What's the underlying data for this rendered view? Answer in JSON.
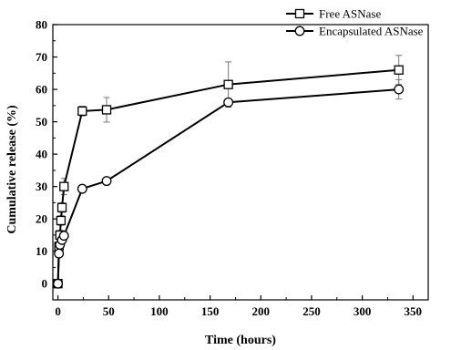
{
  "chart_data": {
    "type": "line",
    "xlabel": "Time (hours)",
    "ylabel": "Cumulative release (%)",
    "xlim": [
      -5,
      365
    ],
    "ylim": [
      -5,
      80
    ],
    "xticks": [
      0,
      50,
      100,
      150,
      200,
      250,
      300,
      350
    ],
    "yticks": [
      0,
      10,
      20,
      30,
      40,
      50,
      60,
      70,
      80
    ],
    "grid": false,
    "legend_position": "top-right",
    "series": [
      {
        "name": "Free ASNase",
        "marker": "square",
        "points": [
          {
            "x": 0,
            "y": 0,
            "err": 0
          },
          {
            "x": 1,
            "y": 11.5,
            "err": 1.0
          },
          {
            "x": 2,
            "y": 15,
            "err": 1.5
          },
          {
            "x": 3,
            "y": 19.5,
            "err": 1.5
          },
          {
            "x": 4,
            "y": 23.5,
            "err": 1.5
          },
          {
            "x": 6,
            "y": 30,
            "err": 2.5
          },
          {
            "x": 24,
            "y": 53.3,
            "err": 1.5
          },
          {
            "x": 48,
            "y": 53.7,
            "err": 3.8
          },
          {
            "x": 168,
            "y": 61.5,
            "err": 7.0
          },
          {
            "x": 336,
            "y": 66,
            "err": 4.5
          }
        ]
      },
      {
        "name": "Encapsulated ASNase",
        "marker": "circle",
        "points": [
          {
            "x": 0,
            "y": 0,
            "err": 0
          },
          {
            "x": 1,
            "y": 9.3,
            "err": 1.0
          },
          {
            "x": 2,
            "y": 12,
            "err": 1.0
          },
          {
            "x": 4,
            "y": 13.5,
            "err": 1.0
          },
          {
            "x": 6,
            "y": 14.8,
            "err": 1.0
          },
          {
            "x": 24,
            "y": 29.3,
            "err": 0.8
          },
          {
            "x": 48,
            "y": 31.7,
            "err": 0.8
          },
          {
            "x": 168,
            "y": 56,
            "err": 1.0
          },
          {
            "x": 336,
            "y": 60,
            "err": 3.0
          }
        ]
      }
    ]
  }
}
